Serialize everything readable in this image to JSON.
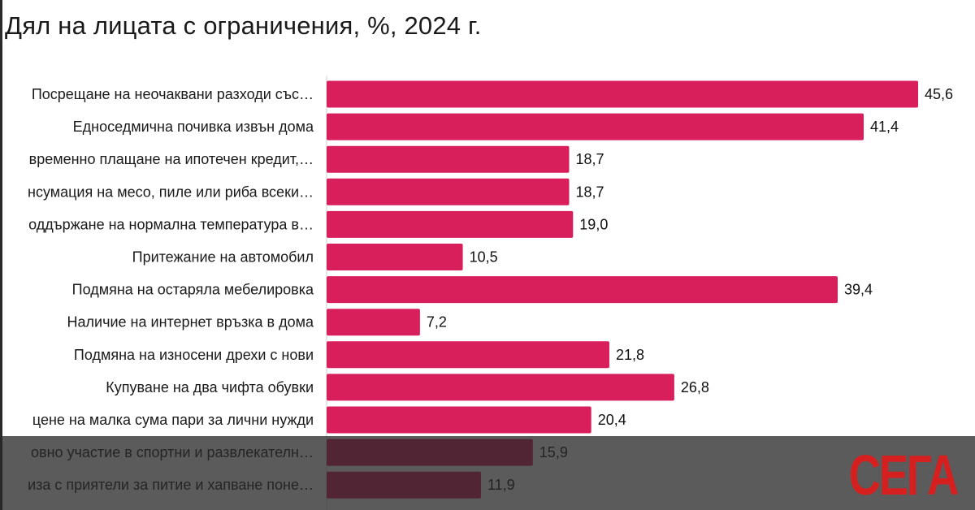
{
  "chart_data": {
    "type": "bar",
    "orientation": "horizontal",
    "title": "Дял на лицата с ограничения, %, 2024 г.",
    "xlabel": "",
    "ylabel": "",
    "xlim": [
      0,
      48
    ],
    "grid": false,
    "bar_color": "#d81f5c",
    "categories": [
      "Посрещане на неочаквани разходи със…",
      "Едноседмична почивка извън дома",
      "временно плащане на ипотечен кредит,…",
      "нсумация на месо, пиле или риба всеки…",
      "оддържане на нормална температура в…",
      "Притежание на автомобил",
      "Подмяна на остаряла мебелировка",
      "Наличие на интернет връзка в дома",
      "Подмяна на износени дрехи с нови",
      "Купуване на два чифта обувки",
      "цене на малка сума пари за лични нужди",
      "овно участие в спортни и развлекателн…",
      "иза с приятели за питие и хапване поне…"
    ],
    "values": [
      45.6,
      41.4,
      18.7,
      18.7,
      19.0,
      10.5,
      39.4,
      7.2,
      21.8,
      26.8,
      20.4,
      15.9,
      11.9
    ],
    "value_labels": [
      "45,6",
      "41,4",
      "18,7",
      "18,7",
      "19,0",
      "10,5",
      "39,4",
      "7,2",
      "21,8",
      "26,8",
      "20,4",
      "15,9",
      "11,9"
    ]
  },
  "branding": {
    "logo_text": "СЕГА",
    "logo_color": "#d62020"
  }
}
